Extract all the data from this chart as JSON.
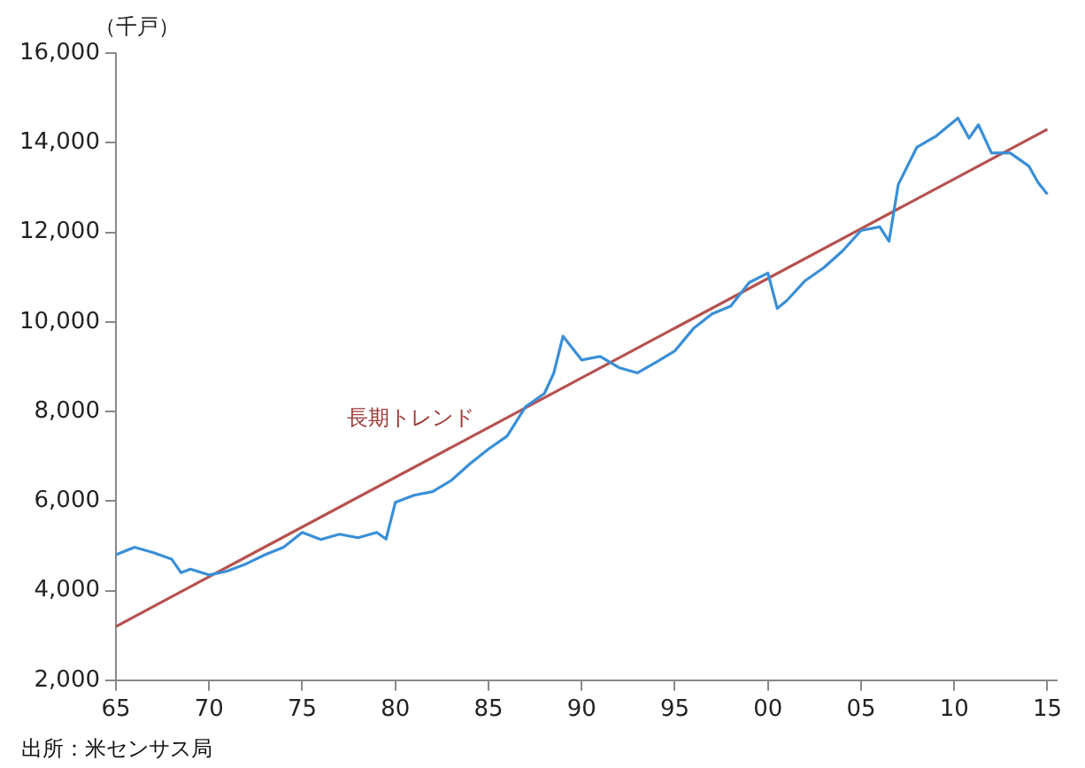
{
  "chart_data": {
    "type": "line",
    "ylabel": "（千戸）",
    "xlim": [
      1965,
      2015.5
    ],
    "xticks": [
      {
        "value": 1965,
        "label": "65"
      },
      {
        "value": 1970,
        "label": "70"
      },
      {
        "value": 1975,
        "label": "75"
      },
      {
        "value": 1980,
        "label": "80"
      },
      {
        "value": 1985,
        "label": "85"
      },
      {
        "value": 1990,
        "label": "90"
      },
      {
        "value": 1995,
        "label": "95"
      },
      {
        "value": 2000,
        "label": "00"
      },
      {
        "value": 2005,
        "label": "05"
      },
      {
        "value": 2010,
        "label": "10"
      },
      {
        "value": 2015,
        "label": "15"
      }
    ],
    "ylim": [
      2000,
      16000
    ],
    "yticks": [
      {
        "value": 2000,
        "label": "2,000"
      },
      {
        "value": 4000,
        "label": "4,000"
      },
      {
        "value": 6000,
        "label": "6,000"
      },
      {
        "value": 8000,
        "label": "8,000"
      },
      {
        "value": 10000,
        "label": "10,000"
      },
      {
        "value": 12000,
        "label": "12,000"
      },
      {
        "value": 14000,
        "label": "14,000"
      },
      {
        "value": 16000,
        "label": "16,000"
      }
    ],
    "grid": false,
    "legend": false,
    "marker": "none",
    "line_style": "solid",
    "series": [
      {
        "color": "#3a8fd6",
        "x": [
          1965,
          1966,
          1967,
          1968,
          1968.5,
          1969,
          1970,
          1971,
          1972,
          1973,
          1974,
          1975,
          1976,
          1977,
          1978,
          1979,
          1979.5,
          1980,
          1981,
          1982,
          1983,
          1984,
          1985,
          1986,
          1987,
          1988,
          1988.5,
          1989,
          1990,
          1991,
          1992,
          1993,
          1994,
          1995,
          1996,
          1997,
          1998,
          1999,
          2000,
          2000.5,
          2001,
          2002,
          2003,
          2004,
          2005,
          2006,
          2006.5,
          2007,
          2008,
          2009,
          2010.2,
          2010.8,
          2011.3,
          2012,
          2013,
          2014,
          2014.5,
          2015
        ],
        "values": [
          4800,
          4970,
          4850,
          4700,
          4400,
          4480,
          4350,
          4440,
          4600,
          4800,
          4970,
          5300,
          5140,
          5260,
          5180,
          5300,
          5150,
          5970,
          6130,
          6210,
          6460,
          6830,
          7160,
          7450,
          8110,
          8400,
          8850,
          9680,
          9150,
          9230,
          8980,
          8860,
          9100,
          9350,
          9850,
          10180,
          10350,
          10880,
          11090,
          10300,
          10470,
          10920,
          11210,
          11580,
          12040,
          12120,
          11800,
          13070,
          13900,
          14140,
          14550,
          14100,
          14400,
          13770,
          13770,
          13480,
          13110,
          12850
        ]
      },
      {
        "type": "line",
        "color": "#b5524f",
        "x": [
          1965,
          2015
        ],
        "values": [
          3200,
          14300
        ]
      }
    ],
    "annotations": [
      "長期トレンド",
      "出所：米センサス局"
    ]
  }
}
